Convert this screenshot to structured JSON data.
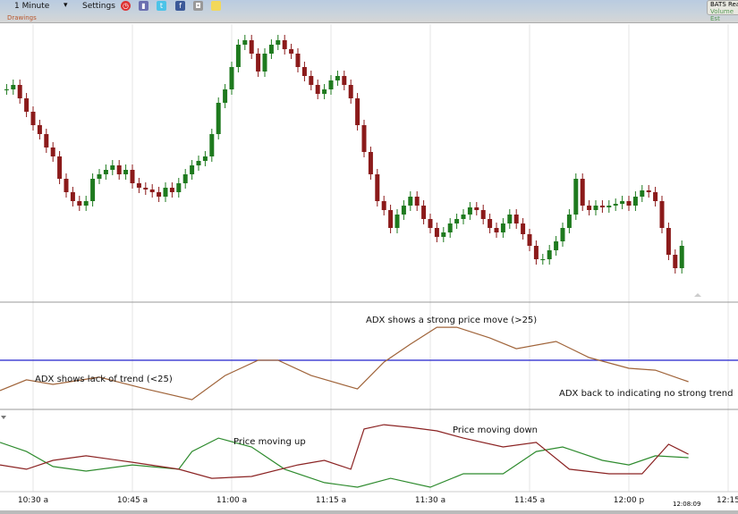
{
  "toolbar": {
    "interval": "1 Minute",
    "settings": "Settings",
    "drawings": "Drawings",
    "feed": "BATS Rea",
    "feed_sub": "Volume Est",
    "icons": [
      "alarm-clock-icon",
      "book-icon",
      "twitter-icon",
      "facebook-icon",
      "camera-icon",
      "sticky-note-icon"
    ]
  },
  "colors": {
    "up": "#1e7a1e",
    "down": "#8b1a1a",
    "adx": "#a0643a",
    "threshold": "#2222cc",
    "di_plus": "#2e8b2e",
    "di_minus": "#8b2323",
    "grid": "#e4e4e4"
  },
  "chart_data": [
    {
      "type": "candlestick",
      "start_time": "10:26",
      "interval": "1 Minute",
      "first_open": 30.0,
      "close": [
        30.0,
        30.5,
        29.0,
        27.5,
        26.0,
        25.0,
        23.5,
        22.5,
        20.0,
        18.5,
        17.5,
        17.0,
        17.5,
        20.0,
        20.5,
        21.0,
        21.5,
        20.5,
        21.0,
        19.5,
        19.0,
        18.8,
        18.5,
        18.0,
        19.0,
        18.5,
        19.5,
        20.5,
        21.5,
        22.0,
        22.5,
        25.0,
        28.5,
        30.0,
        32.5,
        35.0,
        35.5,
        34.0,
        32.0,
        34.0,
        35.0,
        35.5,
        34.5,
        34.0,
        32.5,
        31.5,
        30.5,
        29.5,
        30.0,
        31.0,
        31.5,
        30.5,
        29.0,
        26.0,
        23.0,
        20.5,
        17.5,
        16.5,
        14.5,
        16.0,
        17.0,
        18.0,
        17.0,
        15.5,
        14.5,
        13.5,
        14.0,
        15.0,
        15.5,
        16.0,
        16.8,
        16.5,
        15.5,
        14.5,
        14.0,
        15.0,
        16.0,
        15.0,
        13.8,
        12.5,
        11.0,
        11.0,
        12.0,
        13.0,
        14.5,
        16.0,
        20.0,
        17.0,
        16.5,
        17.0,
        16.8,
        17.0,
        17.2,
        17.5,
        17.0,
        18.0,
        18.7,
        18.5,
        17.5,
        14.5,
        11.5,
        10.0,
        12.5
      ]
    },
    {
      "type": "line",
      "panel": "ADX",
      "threshold": 25,
      "series": [
        {
          "x": [
            "10:25",
            "10:29",
            "10:33",
            "10:40",
            "10:47",
            "10:54",
            "10:59",
            "11:04",
            "11:07",
            "11:12",
            "11:19",
            "11:23",
            "11:27",
            "11:31",
            "11:34",
            "11:39",
            "11:43",
            "11:49",
            "11:54",
            "12:00",
            "12:04",
            "12:09"
          ],
          "values": [
            13.7,
            17.7,
            16,
            18.7,
            14.3,
            10.3,
            19.3,
            25,
            25,
            19.3,
            14.3,
            24.3,
            31,
            37.3,
            37.3,
            33.3,
            29.3,
            32,
            26,
            22,
            21.3,
            17
          ]
        }
      ]
    },
    {
      "type": "line",
      "panel": "DMI",
      "series": [
        {
          "x": [
            "10:25",
            "10:29",
            "10:33",
            "10:38",
            "10:45",
            "10:52",
            "10:54",
            "10:58",
            "11:03",
            "11:08",
            "11:14",
            "11:19",
            "11:24",
            "11:30",
            "11:35",
            "11:41",
            "11:46",
            "11:50",
            "11:56",
            "12:00",
            "12:04",
            "12:09"
          ],
          "values": [
            21.7,
            18.3,
            12.7,
            11,
            13.3,
            11.7,
            18.3,
            23.3,
            20,
            11.7,
            6.7,
            5,
            8.3,
            5,
            10,
            10,
            18.3,
            20,
            15,
            13.3,
            16.7,
            16
          ]
        },
        {
          "x": [
            "10:25",
            "10:29",
            "10:33",
            "10:38",
            "10:45",
            "10:52",
            "10:57",
            "11:03",
            "11:10",
            "11:14",
            "11:18",
            "11:20",
            "11:23",
            "11:27",
            "11:31",
            "11:35",
            "11:41",
            "11:46",
            "11:51",
            "11:57",
            "12:02",
            "12:06",
            "12:09"
          ],
          "values": [
            13.3,
            11.7,
            15,
            16.7,
            14.3,
            11.7,
            8.3,
            9,
            13.3,
            15,
            11.7,
            26.7,
            28.3,
            27.3,
            26,
            23.3,
            20,
            21.7,
            11.7,
            10,
            10,
            21,
            17.3
          ]
        }
      ]
    }
  ],
  "annotations": {
    "strong": "ADX shows a strong price move (>25)",
    "lack": "ADX shows lack of trend (<25)",
    "back": "ADX back to indicating no strong trend",
    "up": "Price moving up",
    "down": "Price moving down"
  },
  "xaxis": {
    "ticks": [
      "10:30 a",
      "10:45 a",
      "11:00 a",
      "11:15 a",
      "11:30 a",
      "11:45 a",
      "12:00 p",
      "12:15"
    ],
    "current_time": "12:08:09"
  }
}
